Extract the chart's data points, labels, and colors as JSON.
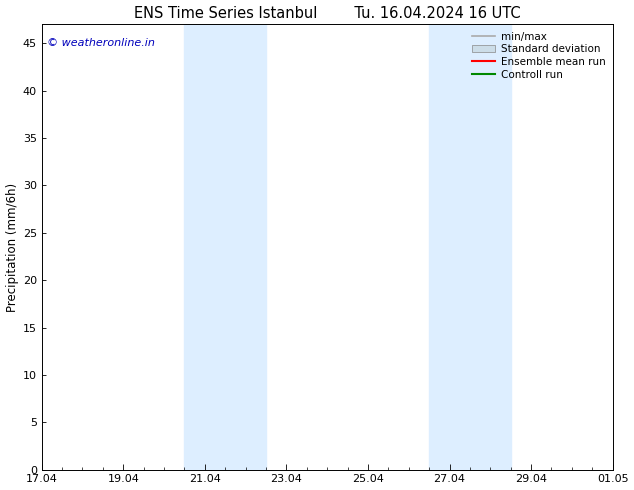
{
  "title_left": "ENS Time Series Istanbul",
  "title_right": "Tu. 16.04.2024 16 UTC",
  "ylabel": "Precipitation (mm/6h)",
  "xlim_start": 0,
  "xlim_end": 14,
  "ylim": [
    0,
    47
  ],
  "yticks": [
    0,
    5,
    10,
    15,
    20,
    25,
    30,
    35,
    40,
    45
  ],
  "xtick_labels": [
    "17.04",
    "19.04",
    "21.04",
    "23.04",
    "25.04",
    "27.04",
    "29.04",
    "01.05"
  ],
  "xtick_positions": [
    0,
    2,
    4,
    6,
    8,
    10,
    12,
    14
  ],
  "shaded_regions": [
    {
      "xmin": 3.5,
      "xmax": 5.5
    },
    {
      "xmin": 9.5,
      "xmax": 11.5
    }
  ],
  "shaded_color": "#ddeeff",
  "watermark": "© weatheronline.in",
  "watermark_color": "#0000bb",
  "legend_labels": [
    "min/max",
    "Standard deviation",
    "Ensemble mean run",
    "Controll run"
  ],
  "legend_colors": [
    "#aaaaaa",
    "#ccdde8",
    "#ff0000",
    "#008800"
  ],
  "bg_color": "#ffffff",
  "plot_bg_color": "#ffffff",
  "spine_color": "#000000",
  "tick_color": "#000000",
  "font_size_title": 10.5,
  "font_size_axis": 8.5,
  "font_size_tick": 8,
  "font_size_legend": 7.5,
  "font_size_watermark": 8
}
